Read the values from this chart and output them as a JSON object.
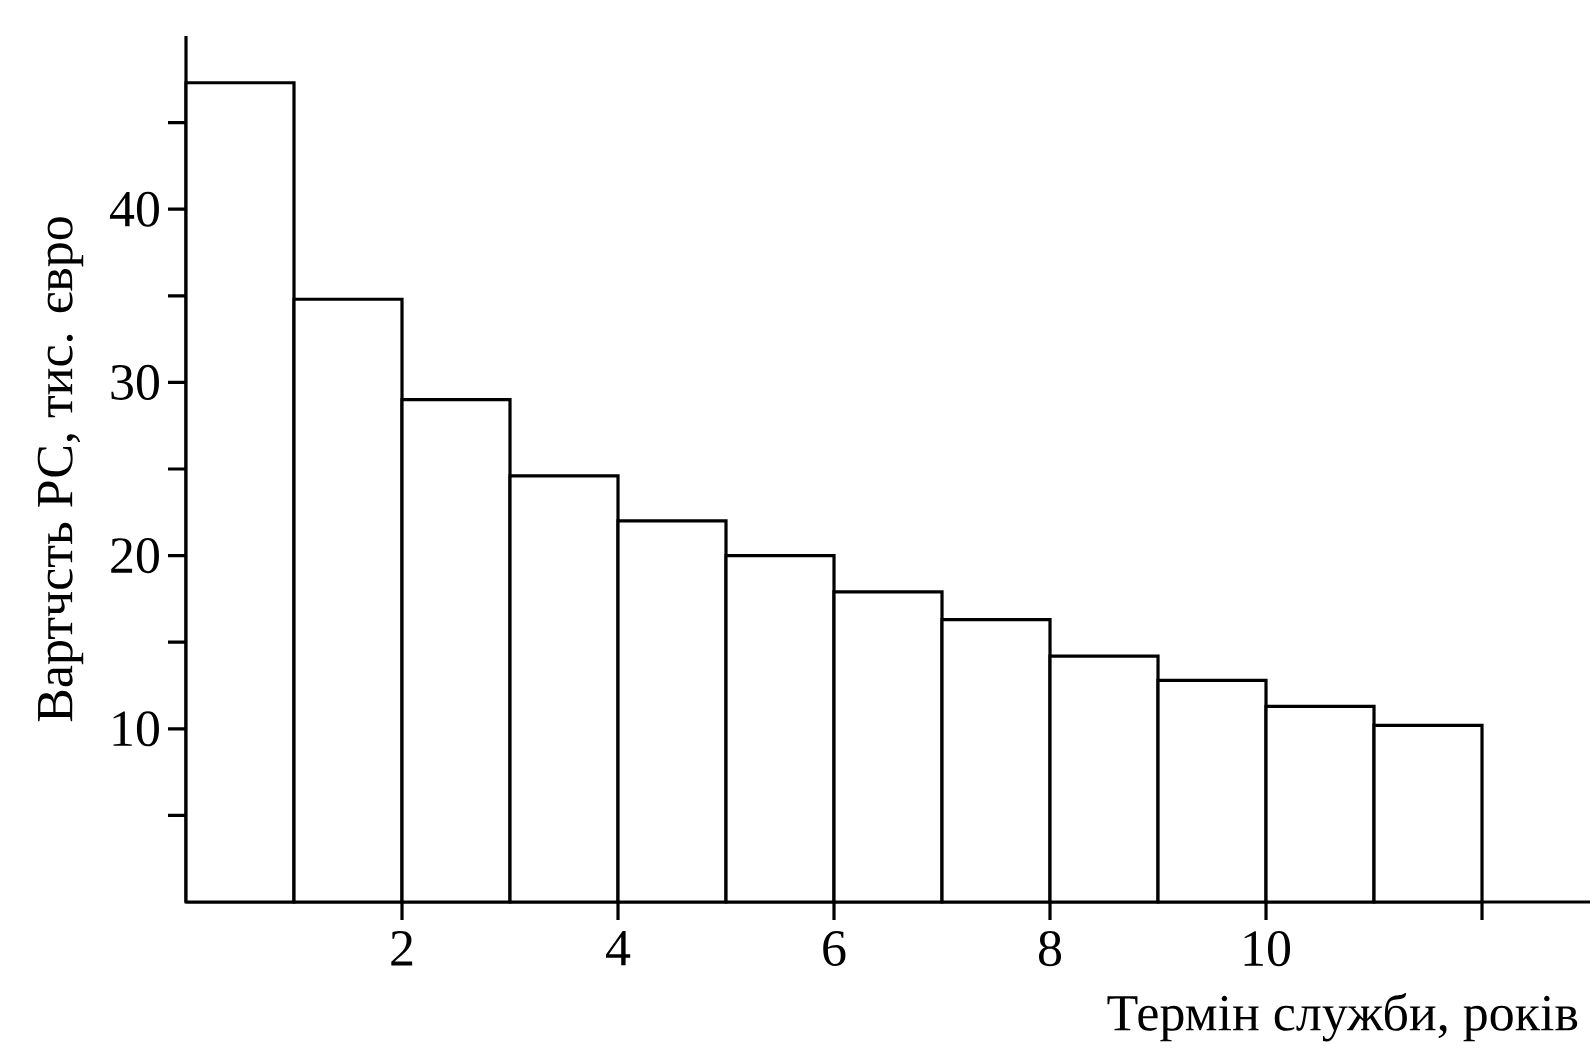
{
  "chart_data": {
    "type": "histogram",
    "xlabel": "Термін служби, років",
    "ylabel": "Вартчсть РС, тис. євро",
    "bins": [
      0,
      1,
      2,
      3,
      4,
      5,
      6,
      7,
      8,
      9,
      10,
      11,
      12
    ],
    "values": [
      47.3,
      34.8,
      29.0,
      24.6,
      22.0,
      20.0,
      17.9,
      16.3,
      14.2,
      12.8,
      11.3,
      10.2
    ],
    "color": "#ffffff",
    "xlim": [
      0,
      13
    ],
    "ylim": [
      0,
      50
    ],
    "xticks": [
      2,
      4,
      6,
      8,
      10,
      {
        "value": 12,
        "label": null
      }
    ],
    "yticks": [
      {
        "value": 5,
        "label": null
      },
      10,
      {
        "value": 15,
        "label": null
      },
      20,
      {
        "value": 25,
        "label": null
      },
      30,
      {
        "value": 35,
        "label": null
      },
      40,
      {
        "value": 45,
        "label": null
      }
    ]
  }
}
